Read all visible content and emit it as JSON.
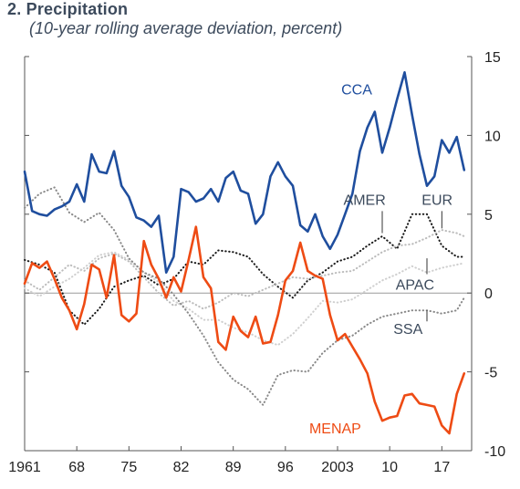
{
  "title": "2. Precipitation",
  "subtitle": "(10-year rolling average deviation, percent)",
  "chart_data": {
    "type": "line",
    "title": "2. Precipitation",
    "subtitle": "(10-year rolling average deviation, percent)",
    "xlim": [
      1961,
      2021
    ],
    "ylim": [
      -10,
      15
    ],
    "y_axis_side": "right",
    "yticks": [
      -10,
      -5,
      0,
      5,
      10,
      15
    ],
    "ytick_labels": [
      "-10",
      "-5",
      "0",
      "5",
      "10",
      "15"
    ],
    "xticks": [
      1961,
      1968,
      1975,
      1982,
      1989,
      1996,
      2003,
      2010,
      2017
    ],
    "xtick_labels": [
      "1961",
      "68",
      "75",
      "82",
      "89",
      "96",
      "2003",
      "10",
      "17"
    ],
    "grid": false,
    "zero_line": true,
    "series": [
      {
        "name": "CCA",
        "color": "#1f4e9e",
        "style": "solid",
        "x": [
          1961,
          1962,
          1963,
          1964,
          1965,
          1966,
          1967,
          1968,
          1969,
          1970,
          1971,
          1972,
          1973,
          1974,
          1975,
          1976,
          1977,
          1978,
          1979,
          1980,
          1981,
          1982,
          1983,
          1984,
          1985,
          1986,
          1987,
          1988,
          1989,
          1990,
          1991,
          1992,
          1993,
          1994,
          1995,
          1996,
          1997,
          1998,
          1999,
          2000,
          2001,
          2002,
          2003,
          2004,
          2005,
          2006,
          2007,
          2008,
          2009,
          2010,
          2011,
          2012,
          2013,
          2014,
          2015,
          2016,
          2017,
          2018,
          2019,
          2020
        ],
        "y": [
          7.7,
          5.2,
          5.0,
          4.9,
          5.3,
          5.5,
          5.8,
          6.9,
          5.8,
          8.8,
          7.7,
          7.6,
          9.0,
          6.8,
          6.1,
          4.8,
          4.6,
          4.2,
          4.9,
          1.3,
          2.3,
          6.6,
          6.4,
          5.8,
          6.0,
          6.6,
          5.8,
          7.3,
          7.7,
          6.5,
          6.3,
          4.4,
          5.0,
          7.4,
          8.3,
          7.4,
          6.8,
          4.3,
          3.9,
          5.0,
          3.6,
          2.8,
          3.7,
          5.0,
          6.3,
          9.0,
          10.5,
          11.5,
          8.9,
          10.5,
          12.3,
          14.0,
          11.3,
          8.8,
          6.8,
          7.4,
          9.7,
          8.9,
          9.9,
          7.8
        ]
      },
      {
        "name": "MENAP",
        "color": "#ee4b14",
        "style": "solid",
        "x": [
          1961,
          1962,
          1963,
          1964,
          1965,
          1966,
          1967,
          1968,
          1969,
          1970,
          1971,
          1972,
          1973,
          1974,
          1975,
          1976,
          1977,
          1978,
          1979,
          1980,
          1981,
          1982,
          1983,
          1984,
          1985,
          1986,
          1987,
          1988,
          1989,
          1990,
          1991,
          1992,
          1993,
          1994,
          1995,
          1996,
          1997,
          1998,
          1999,
          2000,
          2001,
          2002,
          2003,
          2004,
          2005,
          2006,
          2007,
          2008,
          2009,
          2010,
          2011,
          2012,
          2013,
          2014,
          2015,
          2016,
          2017,
          2018,
          2019,
          2020
        ],
        "y": [
          0.6,
          1.9,
          1.6,
          2.0,
          0.9,
          -0.3,
          -1.1,
          -2.3,
          -0.7,
          1.8,
          1.5,
          -0.3,
          2.4,
          -1.4,
          -1.8,
          -1.3,
          3.3,
          1.8,
          0.9,
          -0.3,
          1.0,
          0.1,
          2.1,
          4.2,
          1.0,
          0.3,
          -3.1,
          -3.6,
          -1.5,
          -2.4,
          -2.8,
          -1.5,
          -3.2,
          -3.1,
          -1.4,
          0.8,
          1.4,
          3.2,
          1.4,
          1.1,
          0.9,
          -1.4,
          -3.0,
          -2.6,
          -3.4,
          -4.2,
          -5.1,
          -6.9,
          -8.1,
          -7.9,
          -7.8,
          -6.5,
          -6.4,
          -7.0,
          -7.1,
          -7.2,
          -8.4,
          -8.9,
          -6.4,
          -5.1
        ]
      },
      {
        "name": "AMER",
        "color": "#1a1a1a",
        "style": "dotted",
        "x": [
          1961,
          1963,
          1965,
          1967,
          1969,
          1971,
          1973,
          1975,
          1977,
          1979,
          1981,
          1983,
          1985,
          1987,
          1989,
          1991,
          1993,
          1995,
          1997,
          1999,
          2001,
          2003,
          2005,
          2007,
          2009,
          2011,
          2013,
          2015,
          2017,
          2019,
          2020
        ],
        "y": [
          2.1,
          1.8,
          1.3,
          -1.1,
          -2.0,
          -1.0,
          0.4,
          0.8,
          1.1,
          0.5,
          0.9,
          2.0,
          1.8,
          2.7,
          2.6,
          2.3,
          1.2,
          0.4,
          -0.3,
          0.8,
          1.3,
          2.0,
          2.3,
          3.0,
          3.6,
          2.8,
          5.0,
          5.0,
          3.0,
          2.3,
          2.3
        ]
      },
      {
        "name": "EUR",
        "color": "#bcbcbc",
        "style": "dotted",
        "x": [
          1961,
          1963,
          1965,
          1967,
          1969,
          1971,
          1973,
          1975,
          1977,
          1979,
          1981,
          1983,
          1985,
          1987,
          1989,
          1991,
          1993,
          1995,
          1997,
          1999,
          2001,
          2003,
          2005,
          2007,
          2009,
          2011,
          2013,
          2015,
          2017,
          2019,
          2020
        ],
        "y": [
          0.8,
          0.2,
          1.0,
          1.8,
          1.4,
          2.2,
          2.5,
          2.0,
          1.0,
          0.0,
          -0.8,
          -0.5,
          -1.0,
          -0.6,
          0.0,
          -0.2,
          0.2,
          0.6,
          1.0,
          0.9,
          1.1,
          1.3,
          1.4,
          2.0,
          2.6,
          3.0,
          3.1,
          3.5,
          4.0,
          3.8,
          3.6
        ]
      },
      {
        "name": "APAC",
        "color": "#cfcfcf",
        "style": "dotted",
        "x": [
          1961,
          1963,
          1965,
          1967,
          1969,
          1971,
          1973,
          1975,
          1977,
          1979,
          1981,
          1983,
          1985,
          1987,
          1989,
          1991,
          1993,
          1995,
          1997,
          1999,
          2001,
          2003,
          2005,
          2007,
          2009,
          2011,
          2013,
          2015,
          2017,
          2019,
          2020
        ],
        "y": [
          0.3,
          -0.2,
          0.4,
          0.9,
          1.6,
          2.4,
          2.6,
          2.1,
          1.3,
          0.7,
          -0.5,
          -1.0,
          -1.7,
          -1.7,
          -2.2,
          -2.5,
          -3.0,
          -3.3,
          -2.6,
          -1.6,
          -0.5,
          -0.6,
          -0.4,
          0.2,
          0.8,
          1.2,
          1.7,
          1.3,
          1.6,
          1.8,
          1.9
        ]
      },
      {
        "name": "SSA",
        "color": "#8a8a8a",
        "style": "dotted",
        "x": [
          1961,
          1963,
          1965,
          1967,
          1969,
          1971,
          1973,
          1975,
          1977,
          1979,
          1981,
          1983,
          1985,
          1987,
          1989,
          1991,
          1993,
          1995,
          1997,
          1999,
          2001,
          2003,
          2005,
          2007,
          2009,
          2011,
          2013,
          2015,
          2017,
          2019,
          2020
        ],
        "y": [
          5.4,
          6.3,
          6.7,
          5.1,
          4.5,
          5.1,
          4.0,
          2.2,
          1.3,
          0.9,
          -0.1,
          -1.3,
          -2.7,
          -4.4,
          -5.5,
          -6.1,
          -7.1,
          -5.2,
          -4.9,
          -5.0,
          -3.8,
          -3.0,
          -2.7,
          -2.0,
          -1.5,
          -1.3,
          -1.1,
          -1.1,
          -1.3,
          -1.1,
          -0.3
        ]
      }
    ],
    "labels": [
      {
        "text": "CCA",
        "series": "CCA",
        "color": "#1f4e9e"
      },
      {
        "text": "AMER",
        "series": "AMER",
        "color": "#3c4a5c"
      },
      {
        "text": "EUR",
        "series": "EUR",
        "color": "#3c4a5c"
      },
      {
        "text": "APAC",
        "series": "APAC",
        "color": "#3c4a5c"
      },
      {
        "text": "SSA",
        "series": "SSA",
        "color": "#3c4a5c"
      },
      {
        "text": "MENAP",
        "series": "MENAP",
        "color": "#ee4b14"
      }
    ]
  }
}
